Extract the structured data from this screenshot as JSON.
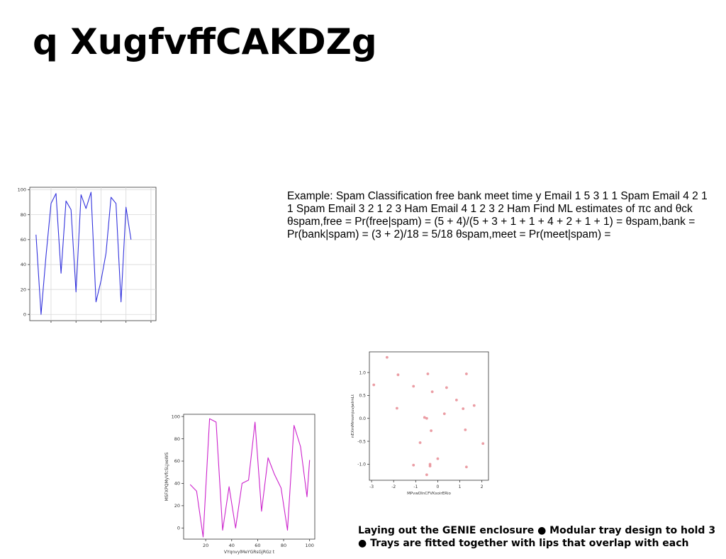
{
  "slide": {
    "title": "q XugfvffCAKDZg",
    "body_text": "Example: Spam Classification free bank meet time y Email 1 5 3 1 1 Spam Email 4 2 1 1 Spam Email 3 2 1 2 3 Ham Email 4 1 2 3 2 Ham Find ML estimates of πc and θck θspam,free = Pr(free|spam) = (5 + 4)/(5 + 3 + 1 + 1 + 4 + 2 + 1 + 1) = θspam,bank = Pr(bank|spam) = (3 + 2)/18 = 5/18 θspam,meet = Pr(meet|spam) =",
    "caption_line1": "Laying out the GENIE enclosure ● Modular tray design to hold 3",
    "caption_line2": "● Trays are fitted together with lips that overlap with each"
  },
  "chart_data": [
    {
      "type": "line",
      "color": "#3333dd",
      "xlim": [
        3,
        104
      ],
      "ylim": [
        -5,
        102
      ],
      "xticks": [
        20,
        40,
        60,
        80,
        100
      ],
      "yticks": [
        0,
        20,
        40,
        60,
        80,
        100
      ],
      "xlabel": "",
      "ylabel": "",
      "grid": true,
      "x": [
        8,
        12,
        16,
        20,
        24,
        28,
        32,
        36,
        40,
        44,
        48,
        52,
        56,
        60,
        64,
        68,
        72,
        76,
        80,
        84,
        88,
        92,
        96,
        100
      ],
      "y": [
        64,
        0,
        47,
        89,
        97,
        33,
        91,
        84,
        18,
        96,
        85,
        98,
        10,
        27,
        49,
        94,
        89,
        10,
        86,
        60,
        null,
        null,
        null,
        null
      ]
    },
    {
      "type": "line",
      "color": "#cc22cc",
      "xlim": [
        3,
        104
      ],
      "ylim": [
        -10,
        102
      ],
      "xticks": [
        20,
        40,
        60,
        80,
        100
      ],
      "yticks": [
        0,
        20,
        40,
        60,
        80,
        100
      ],
      "xlabel": "VYqnvylMeYGRsGjRGz t",
      "ylabel": "MSFXPQMyVfcSLJxeWS",
      "grid": false,
      "x": [
        8,
        13,
        18,
        23,
        28,
        33,
        38,
        43,
        48,
        53,
        58,
        63,
        68,
        73,
        78,
        83,
        88,
        93,
        98,
        100
      ],
      "y": [
        39,
        33,
        -8,
        98,
        95,
        -2,
        37,
        0,
        40,
        43,
        95,
        15,
        63,
        48,
        36,
        -2,
        92,
        73,
        28,
        61
      ]
    },
    {
      "type": "scatter",
      "color": "#e88c94",
      "xlim": [
        -3.1,
        2.3
      ],
      "ylim": [
        -1.35,
        1.45
      ],
      "xticks": [
        -3,
        -2,
        -1,
        0,
        1,
        2
      ],
      "yticks": [
        -1.0,
        -0.5,
        0.0,
        0.5,
        1.0
      ],
      "xlabel": "MPvwDInCFVKsoirERio",
      "ylabel": "nEXmMmsmjuvjwIrnLt",
      "grid": false,
      "x": [
        -2.3,
        -1.8,
        -2.9,
        -1.1,
        -0.45,
        -0.25,
        0.4,
        1.3,
        0.85,
        -1.85,
        1.65,
        1.15,
        0.3,
        -0.6,
        -0.5,
        -0.3,
        -0.8,
        1.25,
        -0.0,
        -0.35,
        -1.1,
        -0.35,
        -0.5,
        1.3,
        2.05
      ],
      "y": [
        1.33,
        0.95,
        0.73,
        0.7,
        0.97,
        0.58,
        0.67,
        0.97,
        0.4,
        0.22,
        0.28,
        0.21,
        0.1,
        0.02,
        0.0,
        -0.27,
        -0.53,
        -0.25,
        -0.88,
        -1.0,
        -1.02,
        -1.04,
        -1.23,
        -1.06,
        -0.55
      ]
    }
  ]
}
